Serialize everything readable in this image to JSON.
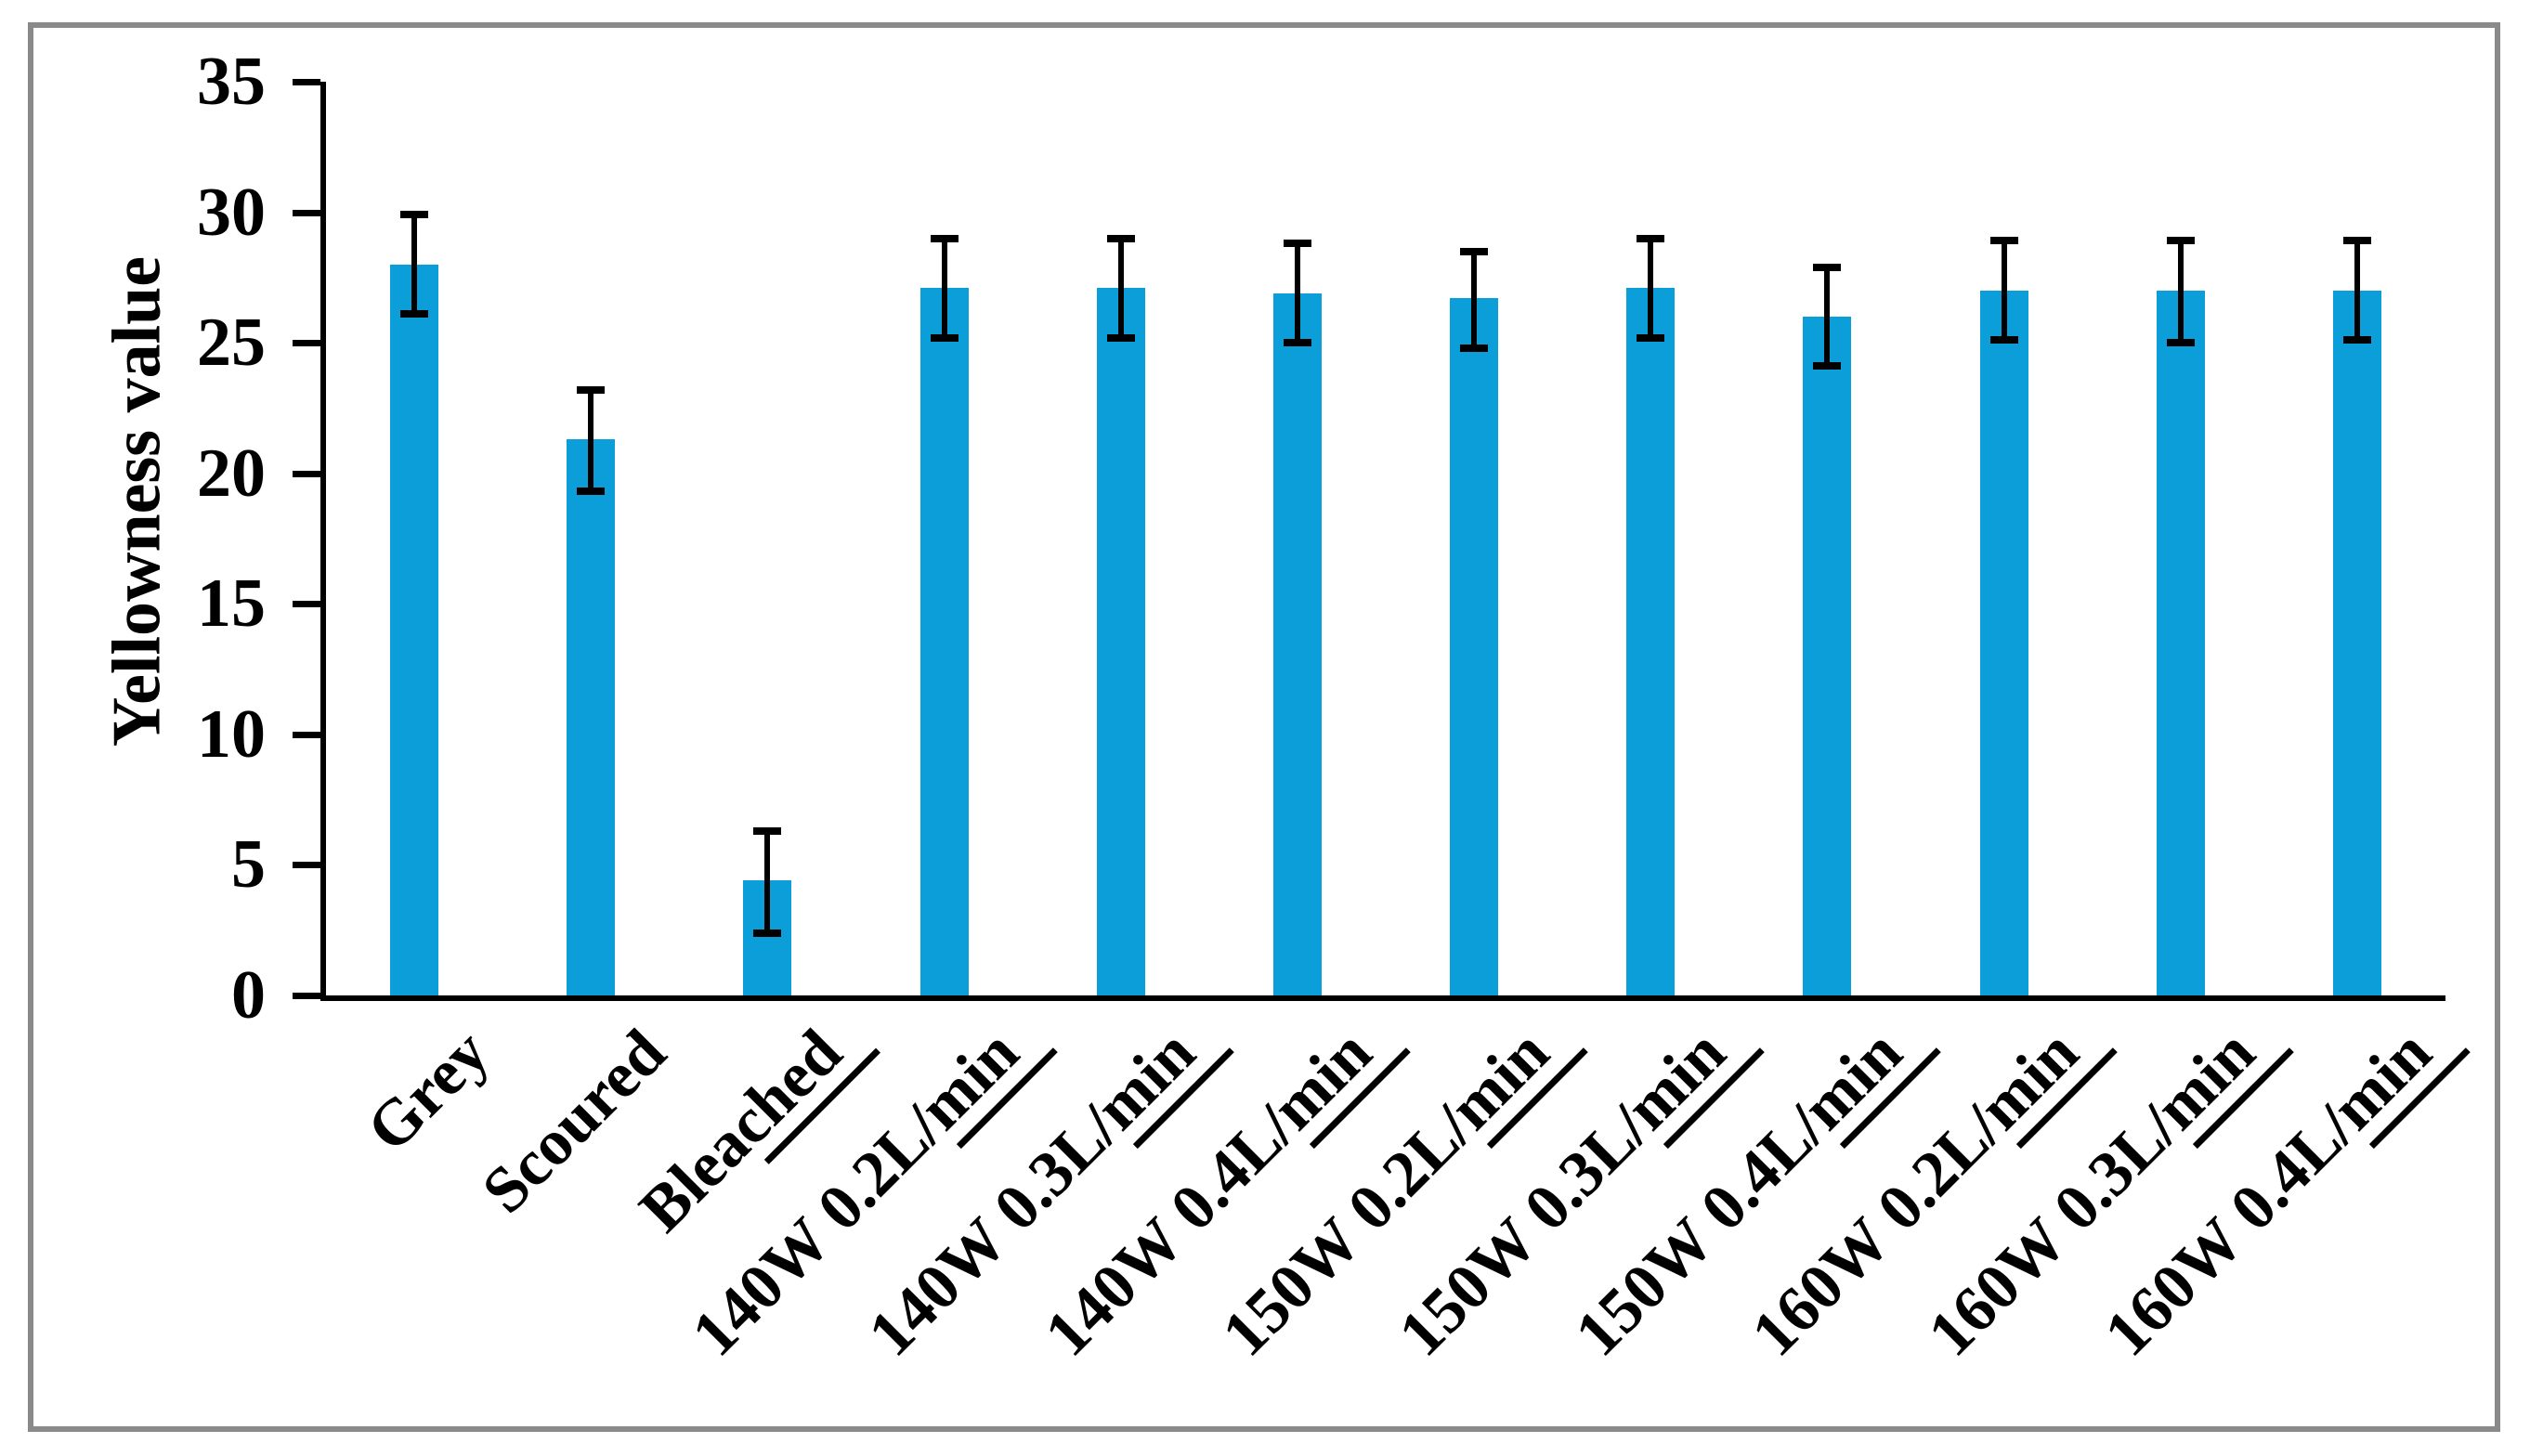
{
  "figure": {
    "border_color": "#8a8a8a",
    "background_color": "#ffffff"
  },
  "chart_data": {
    "type": "bar",
    "title": "",
    "xlabel": "",
    "ylabel": "Yellowness value",
    "ylim": [
      0,
      35
    ],
    "yticks": [
      0,
      5,
      10,
      15,
      20,
      25,
      30,
      35
    ],
    "grid": false,
    "legend": null,
    "bar_color": "#0c9ed9",
    "error_bar_color": "#000000",
    "axis_color": "#000000",
    "categories": [
      "Grey",
      "Scoured",
      "Bleached",
      "140W 0.2L/min",
      "140W 0.3L/min",
      "140W 0.4L/min",
      "150W 0.2L/min",
      "150W 0.3L/min",
      "150W 0.4L/min",
      "160W 0.2L/min",
      "160W 0.3L/min",
      "160W 0.4L/min"
    ],
    "label_underline_suffix": [
      "",
      "",
      "ched",
      "min",
      "min",
      "min",
      "min",
      "min",
      "min",
      "min",
      "min",
      "min"
    ],
    "values": [
      28.0,
      21.3,
      4.4,
      27.1,
      27.1,
      26.9,
      26.7,
      27.1,
      26.0,
      27.0,
      27.0,
      27.0
    ],
    "errors_up": [
      1.9,
      1.9,
      1.9,
      1.9,
      1.9,
      1.9,
      1.8,
      1.9,
      1.9,
      1.9,
      1.9,
      1.9
    ],
    "errors_down": [
      1.9,
      2.0,
      2.0,
      1.9,
      1.9,
      1.9,
      1.9,
      1.9,
      1.9,
      1.9,
      2.0,
      1.9
    ]
  }
}
